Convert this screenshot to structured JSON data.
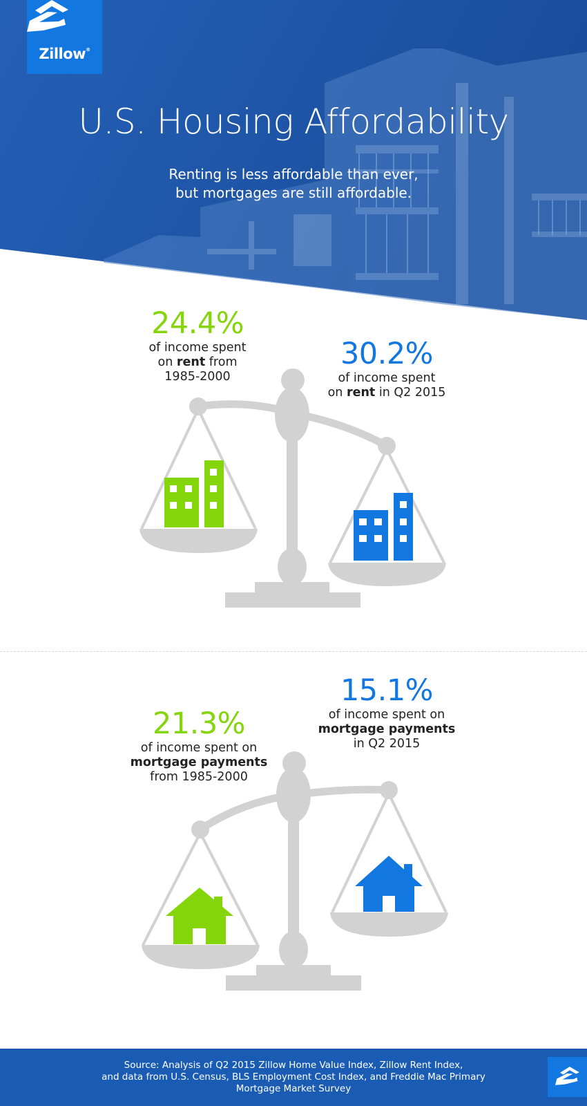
{
  "brand": {
    "logo_text": "Zillow",
    "logo_mark": "®"
  },
  "header": {
    "title": "U.S. Housing Affordability",
    "subtitle_line1": "Renting is less affordable than ever,",
    "subtitle_line2": "but mortgages are still affordable."
  },
  "rent": {
    "past": {
      "value": "24.4%",
      "line1": "of income spent",
      "line2_pre": "on ",
      "line2_bold": "rent",
      "line2_post": " from",
      "line3": "1985-2000"
    },
    "current": {
      "value": "30.2%",
      "line1": "of income spent",
      "line2_pre": "on ",
      "line2_bold": "rent",
      "line2_post": " in Q2 2015"
    }
  },
  "mortgage": {
    "past": {
      "value": "21.3%",
      "line1": "of income spent on",
      "line2_bold": "mortgage payments",
      "line3": "from 1985-2000"
    },
    "current": {
      "value": "15.1%",
      "line1": "of income spent on",
      "line2_bold": "mortgage payments",
      "line3": "in Q2 2015"
    }
  },
  "footer": {
    "source_line1": "Source: Analysis of Q2 2015 Zillow Home Value Index, Zillow Rent Index,",
    "source_line2": "and data from U.S. Census, BLS Employment Cost Index, and Freddie Mac Primary",
    "source_line3": "Mortgage Market Survey"
  },
  "colors": {
    "green": "#84d50a",
    "blue": "#1277e1",
    "scale_gray": "#d2d2d2",
    "header_blue": "#1f5cb5",
    "footer_blue": "#1a5cb4"
  },
  "icons": [
    "zillow-logo-icon",
    "apartment-building-icon",
    "house-icon",
    "balance-scale-icon"
  ]
}
